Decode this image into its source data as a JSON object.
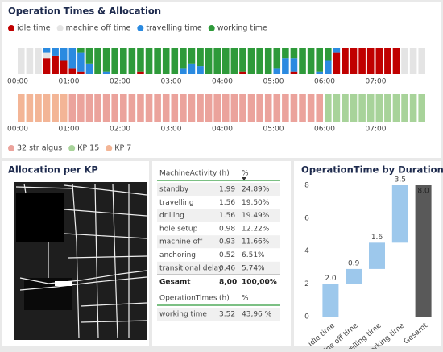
{
  "chart_data": [
    {
      "type": "bar",
      "stacked": true,
      "title": "Operation Times & Allocation",
      "x": [
        0,
        10,
        20,
        30,
        40,
        50,
        60,
        70,
        80,
        90,
        100,
        110,
        120,
        130,
        140,
        150,
        160,
        170,
        180,
        190,
        200,
        210,
        220,
        230,
        240,
        250,
        260,
        270,
        280,
        290,
        300,
        310,
        320,
        330,
        340,
        350,
        360,
        370,
        380,
        390,
        400,
        410,
        420,
        430,
        440,
        450,
        460,
        470
      ],
      "xlim": [
        0,
        480
      ],
      "xticks": [
        {
          "value": 0,
          "label": "00:00"
        },
        {
          "value": 60,
          "label": "01:00"
        },
        {
          "value": 120,
          "label": "02:00"
        },
        {
          "value": 180,
          "label": "03:00"
        },
        {
          "value": 240,
          "label": "04:00"
        },
        {
          "value": 300,
          "label": "05:00"
        },
        {
          "value": 360,
          "label": "06:00"
        },
        {
          "value": 420,
          "label": "07:00"
        }
      ],
      "ylim": [
        0,
        10
      ],
      "series": [
        {
          "name": "idle time",
          "color": "#c00000",
          "values": [
            0,
            0,
            0,
            6,
            7,
            5,
            2,
            1,
            0,
            0,
            0,
            0,
            0,
            0,
            1,
            0,
            0,
            0,
            0,
            0,
            0,
            0,
            0,
            0,
            0,
            0,
            1,
            0,
            0,
            0,
            0,
            0,
            1,
            0,
            0,
            0,
            0,
            8,
            10,
            10,
            10,
            10,
            10,
            10,
            10,
            0,
            0,
            0
          ]
        },
        {
          "name": "machine off time",
          "color": "#e4e4e4",
          "values": [
            10,
            10,
            10,
            2,
            0,
            0,
            0,
            0,
            0,
            0,
            0,
            0,
            0,
            0,
            0,
            0,
            0,
            0,
            0,
            0,
            0,
            0,
            0,
            0,
            0,
            0,
            0,
            0,
            0,
            0,
            0,
            0,
            0,
            0,
            0,
            0,
            0,
            0,
            0,
            0,
            0,
            0,
            0,
            0,
            0,
            10,
            10,
            10
          ]
        },
        {
          "name": "travelling time",
          "color": "#2a8ae0",
          "values": [
            0,
            0,
            0,
            2,
            3,
            5,
            8,
            7,
            4,
            0,
            1,
            0,
            0,
            0,
            0,
            0,
            0,
            0,
            0,
            2,
            4,
            3,
            0,
            0,
            0,
            0,
            0,
            0,
            0,
            0,
            2,
            6,
            5,
            0,
            0,
            1,
            5,
            2,
            0,
            0,
            0,
            0,
            0,
            0,
            0,
            0,
            0,
            0
          ]
        },
        {
          "name": "working time",
          "color": "#2e9a3a",
          "values": [
            0,
            0,
            0,
            0,
            0,
            0,
            0,
            2,
            6,
            10,
            9,
            10,
            10,
            10,
            9,
            10,
            10,
            10,
            10,
            8,
            6,
            7,
            10,
            10,
            10,
            10,
            9,
            10,
            10,
            10,
            8,
            4,
            4,
            10,
            10,
            9,
            5,
            0,
            0,
            0,
            0,
            0,
            0,
            0,
            0,
            0,
            0,
            0
          ]
        }
      ]
    },
    {
      "type": "bar",
      "stacked": true,
      "x": [
        0,
        10,
        20,
        30,
        40,
        50,
        60,
        70,
        80,
        90,
        100,
        110,
        120,
        130,
        140,
        150,
        160,
        170,
        180,
        190,
        200,
        210,
        220,
        230,
        240,
        250,
        260,
        270,
        280,
        290,
        300,
        310,
        320,
        330,
        340,
        350,
        360,
        370,
        380,
        390,
        400,
        410,
        420,
        430,
        440,
        450,
        460,
        470
      ],
      "xlim": [
        0,
        480
      ],
      "xticks": [
        {
          "value": 0,
          "label": "00:00"
        },
        {
          "value": 60,
          "label": "01:00"
        },
        {
          "value": 120,
          "label": "02:00"
        },
        {
          "value": 180,
          "label": "03:00"
        },
        {
          "value": 240,
          "label": "04:00"
        },
        {
          "value": 300,
          "label": "05:00"
        },
        {
          "value": 360,
          "label": "06:00"
        },
        {
          "value": 420,
          "label": "07:00"
        }
      ],
      "ylim": [
        0,
        10
      ],
      "series": [
        {
          "name": "32 str algus",
          "color": "#eba39c",
          "values": [
            0,
            0,
            0,
            0,
            0,
            0,
            10,
            10,
            10,
            10,
            10,
            10,
            10,
            10,
            10,
            10,
            10,
            10,
            10,
            10,
            10,
            10,
            10,
            10,
            10,
            10,
            10,
            10,
            10,
            10,
            10,
            10,
            10,
            10,
            10,
            10,
            0,
            0,
            0,
            0,
            0,
            0,
            0,
            0,
            0,
            0,
            0,
            0
          ]
        },
        {
          "name": "KP 15",
          "color": "#a8d39a",
          "values": [
            0,
            0,
            0,
            0,
            0,
            0,
            0,
            0,
            0,
            0,
            0,
            0,
            0,
            0,
            0,
            0,
            0,
            0,
            0,
            0,
            0,
            0,
            0,
            0,
            0,
            0,
            0,
            0,
            0,
            0,
            0,
            0,
            0,
            0,
            0,
            0,
            10,
            10,
            10,
            10,
            10,
            10,
            10,
            10,
            10,
            10,
            10,
            10
          ]
        },
        {
          "name": "KP 7",
          "color": "#f3b596",
          "values": [
            10,
            10,
            10,
            10,
            10,
            10,
            0,
            0,
            0,
            0,
            0,
            0,
            0,
            0,
            0,
            0,
            0,
            0,
            0,
            0,
            0,
            0,
            0,
            0,
            0,
            0,
            0,
            0,
            0,
            0,
            0,
            0,
            0,
            0,
            0,
            0,
            0,
            0,
            0,
            0,
            0,
            0,
            0,
            0,
            0,
            0,
            0,
            0
          ]
        }
      ]
    },
    {
      "type": "waterfall",
      "title": "OperationTime by Duration [h]",
      "categories": [
        "idle time",
        "machine off time",
        "travelling time",
        "working time",
        "Gesamt"
      ],
      "values": [
        2.0,
        0.9,
        1.6,
        3.5,
        8.0
      ],
      "value_labels": [
        "2.0",
        "0.9",
        "1.6",
        "3.5",
        "8.0"
      ],
      "color": "#9dc8ec",
      "total_color": "#595959",
      "last_is_total": true,
      "ylim": [
        0,
        8
      ],
      "yticks": [
        0,
        2,
        4,
        6,
        8
      ]
    }
  ],
  "map_panel": {
    "title": "Allocation per KP"
  },
  "tables": [
    {
      "headers": [
        "MachineActivity",
        "(h)",
        "%"
      ],
      "rows": [
        [
          "standby",
          "1.99",
          "24.89%"
        ],
        [
          "travelling",
          "1.56",
          "19.50%"
        ],
        [
          "drilling",
          "1.56",
          "19.49%"
        ],
        [
          "hole setup",
          "0.98",
          "12.22%"
        ],
        [
          "machine off",
          "0.93",
          "11.66%"
        ],
        [
          "anchoring",
          "0.52",
          "6.51%"
        ],
        [
          "transitional delay",
          "0.46",
          "5.74%"
        ]
      ],
      "total": [
        "Gesamt",
        "8,00",
        "100,00%"
      ]
    },
    {
      "headers": [
        "OperationTimes",
        "(h)",
        "%"
      ],
      "rows": [
        [
          "working time",
          "3.52",
          "43,96 %"
        ]
      ]
    }
  ]
}
